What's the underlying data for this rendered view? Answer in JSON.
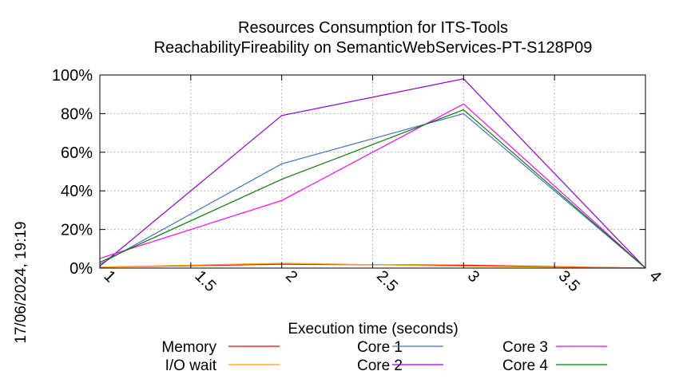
{
  "chart_data": {
    "type": "line",
    "title": "Resources Consumption for ITS-Tools",
    "subtitle": "ReachabilityFireability on SemanticWebServices-PT-S128P09",
    "xlabel": "Execution time (seconds)",
    "ylabel": "",
    "timestamp": "17/06/2024, 19:19",
    "xlim": [
      1,
      4
    ],
    "ylim": [
      0,
      100
    ],
    "x_ticks": [
      "1",
      "1.5",
      "2",
      "2.5",
      "3",
      "3.5",
      "4"
    ],
    "y_ticks": [
      "0%",
      "20%",
      "40%",
      "60%",
      "80%",
      "100%"
    ],
    "x": [
      1,
      2,
      3,
      4
    ],
    "grid": true,
    "legend_position": "bottom",
    "series": [
      {
        "name": "Memory",
        "color": "#ff0000",
        "values": [
          0.5,
          2,
          1.5,
          0
        ]
      },
      {
        "name": "I/O wait",
        "color": "#ffa500",
        "values": [
          0.5,
          2.5,
          1,
          0
        ]
      },
      {
        "name": "Core 1",
        "color": "#4472c4",
        "values": [
          2,
          54,
          80,
          0
        ]
      },
      {
        "name": "Core 2",
        "color": "#9400d3",
        "values": [
          1,
          79,
          98,
          0
        ]
      },
      {
        "name": "Core 3",
        "color": "#ff00ff",
        "values": [
          5,
          35,
          85,
          0
        ]
      },
      {
        "name": "Core 4",
        "color": "#008000",
        "values": [
          3,
          46,
          82,
          0
        ]
      }
    ]
  }
}
